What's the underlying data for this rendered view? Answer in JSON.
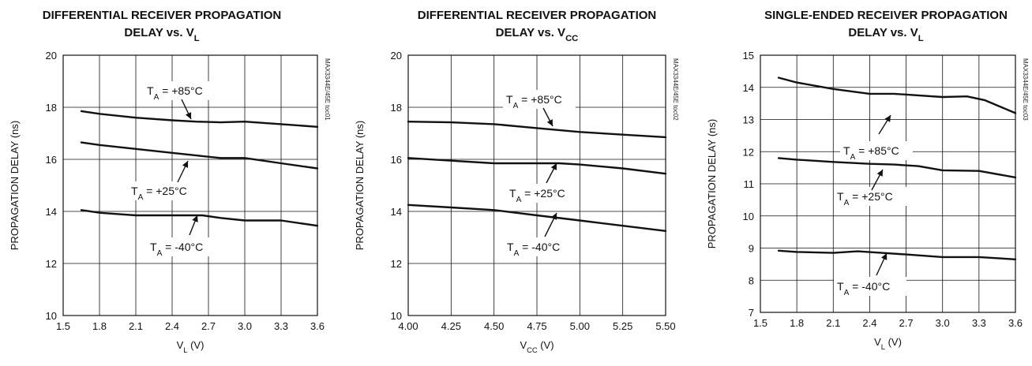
{
  "chart_data": [
    {
      "type": "line",
      "title": "DIFFERENTIAL RECEIVER PROPAGATION",
      "subtitle": {
        "text": "DELAY vs. V",
        "sub": "L"
      },
      "chart_id": "MAX3344E/45E toc01",
      "xlabel": {
        "main": "V",
        "sub": "L",
        "rest": " (V)"
      },
      "ylabel": "PROPAGATION DELAY (ns)",
      "xlim": [
        1.5,
        3.6
      ],
      "ylim": [
        10,
        20
      ],
      "xticks": [
        1.5,
        1.8,
        2.1,
        2.4,
        2.7,
        3.0,
        3.3,
        3.6
      ],
      "xtick_labels": [
        "1.5",
        "1.8",
        "2.1",
        "2.4",
        "2.7",
        "3.0",
        "3.3",
        "3.6"
      ],
      "yticks": [
        10,
        12,
        14,
        16,
        18,
        20
      ],
      "ytick_labels": [
        "10",
        "12",
        "14",
        "16",
        "18",
        "20"
      ],
      "grid": true,
      "series": [
        {
          "name": "TA = +85°C",
          "x": [
            1.65,
            1.8,
            2.1,
            2.4,
            2.6,
            2.8,
            3.0,
            3.3,
            3.6
          ],
          "y": [
            17.85,
            17.75,
            17.6,
            17.5,
            17.45,
            17.42,
            17.45,
            17.35,
            17.25
          ]
        },
        {
          "name": "TA = +25°C",
          "x": [
            1.65,
            1.8,
            2.1,
            2.4,
            2.6,
            2.8,
            3.0,
            3.3,
            3.6
          ],
          "y": [
            16.65,
            16.55,
            16.4,
            16.25,
            16.15,
            16.05,
            16.05,
            15.85,
            15.65
          ]
        },
        {
          "name": "TA = -40°C",
          "x": [
            1.65,
            1.8,
            2.1,
            2.4,
            2.65,
            2.8,
            3.0,
            3.3,
            3.6
          ],
          "y": [
            14.05,
            13.95,
            13.85,
            13.85,
            13.85,
            13.75,
            13.65,
            13.65,
            13.45
          ]
        }
      ],
      "annotations": [
        {
          "main": "T",
          "sub": "A",
          "rest": " = +85°C"
        },
        {
          "main": "T",
          "sub": "A",
          "rest": " = +25°C"
        },
        {
          "main": "T",
          "sub": "A",
          "rest": " = -40°C"
        }
      ]
    },
    {
      "type": "line",
      "title": "DIFFERENTIAL RECEIVER PROPAGATION",
      "subtitle": {
        "text": "DELAY vs. V",
        "sub": "CC"
      },
      "chart_id": "MAX3344E/45E toc02",
      "xlabel": {
        "main": "V",
        "sub": "CC",
        "rest": " (V)"
      },
      "ylabel": "PROPAGATION DELAY (ns)",
      "xlim": [
        4.0,
        5.5
      ],
      "ylim": [
        10,
        20
      ],
      "xticks": [
        4.0,
        4.25,
        4.5,
        4.75,
        5.0,
        5.25,
        5.5
      ],
      "xtick_labels": [
        "4.00",
        "4.25",
        "4.50",
        "4.75",
        "5.00",
        "5.25",
        "5.50"
      ],
      "yticks": [
        10,
        12,
        14,
        16,
        18,
        20
      ],
      "ytick_labels": [
        "10",
        "12",
        "14",
        "16",
        "18",
        "20"
      ],
      "grid": true,
      "series": [
        {
          "name": "TA = +85°C",
          "x": [
            4.0,
            4.25,
            4.5,
            4.75,
            5.0,
            5.25,
            5.5
          ],
          "y": [
            17.45,
            17.42,
            17.35,
            17.2,
            17.05,
            16.95,
            16.85
          ]
        },
        {
          "name": "TA = +25°C",
          "x": [
            4.0,
            4.25,
            4.5,
            4.75,
            4.88,
            5.0,
            5.25,
            5.5
          ],
          "y": [
            16.05,
            15.95,
            15.85,
            15.85,
            15.85,
            15.8,
            15.65,
            15.45
          ]
        },
        {
          "name": "TA = -40°C",
          "x": [
            4.0,
            4.25,
            4.5,
            4.75,
            5.0,
            5.25,
            5.5
          ],
          "y": [
            14.25,
            14.15,
            14.05,
            13.85,
            13.65,
            13.45,
            13.25
          ]
        }
      ],
      "annotations": [
        {
          "main": "T",
          "sub": "A",
          "rest": " = +85°C"
        },
        {
          "main": "T",
          "sub": "A",
          "rest": " = +25°C"
        },
        {
          "main": "T",
          "sub": "A",
          "rest": " = -40°C"
        }
      ]
    },
    {
      "type": "line",
      "title": "SINGLE-ENDED RECEIVER PROPAGATION",
      "subtitle": {
        "text": "DELAY vs. V",
        "sub": "L"
      },
      "chart_id": "MAX3344E/45E toc03",
      "xlabel": {
        "main": "V",
        "sub": "L",
        "rest": " (V)"
      },
      "ylabel": "PROPAGATION DELAY (ns)",
      "xlim": [
        1.5,
        3.6
      ],
      "ylim": [
        7,
        15
      ],
      "xticks": [
        1.5,
        1.8,
        2.1,
        2.4,
        2.7,
        3.0,
        3.3,
        3.6
      ],
      "xtick_labels": [
        "1.5",
        "1.8",
        "2.1",
        "2.4",
        "2.7",
        "3.0",
        "3.3",
        "3.6"
      ],
      "yticks": [
        7,
        8,
        9,
        10,
        11,
        12,
        13,
        14,
        15
      ],
      "ytick_labels": [
        "7",
        "8",
        "9",
        "10",
        "11",
        "12",
        "13",
        "14",
        "15"
      ],
      "grid": true,
      "series": [
        {
          "name": "TA = +85°C",
          "x": [
            1.65,
            1.8,
            2.1,
            2.4,
            2.6,
            2.8,
            3.0,
            3.2,
            3.35,
            3.6
          ],
          "y": [
            14.3,
            14.15,
            13.95,
            13.8,
            13.8,
            13.75,
            13.7,
            13.72,
            13.6,
            13.2
          ]
        },
        {
          "name": "TA = +25°C",
          "x": [
            1.65,
            1.8,
            2.1,
            2.4,
            2.6,
            2.8,
            3.0,
            3.3,
            3.6
          ],
          "y": [
            11.8,
            11.75,
            11.68,
            11.62,
            11.6,
            11.55,
            11.42,
            11.4,
            11.2
          ]
        },
        {
          "name": "TA = -40°C",
          "x": [
            1.65,
            1.8,
            2.1,
            2.3,
            2.5,
            2.7,
            3.0,
            3.3,
            3.6
          ],
          "y": [
            8.92,
            8.88,
            8.85,
            8.9,
            8.85,
            8.8,
            8.72,
            8.72,
            8.65
          ]
        }
      ],
      "annotations": [
        {
          "main": "T",
          "sub": "A",
          "rest": " = +85°C"
        },
        {
          "main": "T",
          "sub": "A",
          "rest": " = +25°C"
        },
        {
          "main": "T",
          "sub": "A",
          "rest": " = -40°C"
        }
      ]
    }
  ]
}
